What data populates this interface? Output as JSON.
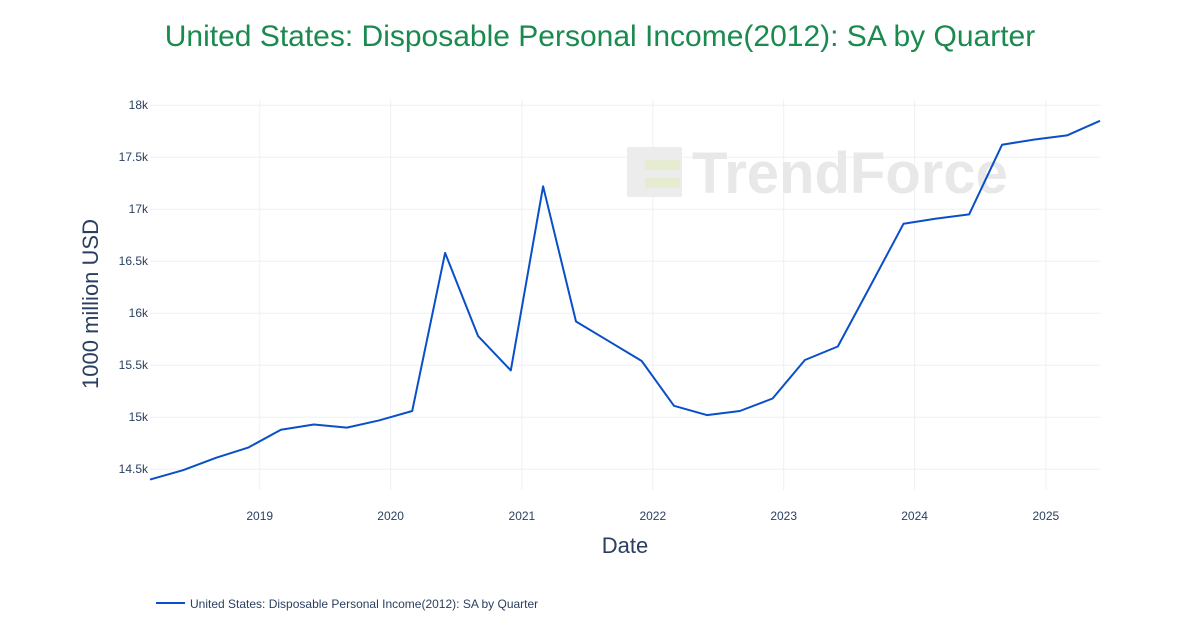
{
  "chart_data": {
    "type": "line",
    "title": "United States: Disposable Personal Income(2012): SA by Quarter",
    "xlabel": "Date",
    "ylabel": "1000 million USD",
    "x": [
      "2018-03-01",
      "2018-06-01",
      "2018-09-01",
      "2018-12-01",
      "2019-03-01",
      "2019-06-01",
      "2019-09-01",
      "2019-12-01",
      "2020-03-01",
      "2020-06-01",
      "2020-09-01",
      "2020-12-01",
      "2021-03-01",
      "2021-06-01",
      "2021-09-01",
      "2021-12-01",
      "2022-03-01",
      "2022-06-01",
      "2022-09-01",
      "2022-12-01",
      "2023-03-01",
      "2023-06-01",
      "2023-09-01",
      "2023-12-01",
      "2024-03-01",
      "2024-06-01",
      "2024-09-01",
      "2024-12-01",
      "2025-03-01",
      "2025-06-01"
    ],
    "series": [
      {
        "name": "United States: Disposable Personal Income(2012): SA by Quarter",
        "color": "#0a4fc9",
        "values": [
          14400,
          14490,
          14610,
          14710,
          14880,
          14930,
          14900,
          14970,
          15060,
          16580,
          15780,
          15450,
          17220,
          15920,
          15730,
          15540,
          15110,
          15020,
          15060,
          15180,
          15550,
          15680,
          16270,
          16860,
          16910,
          16950,
          17620,
          17670,
          17710,
          17850
        ]
      }
    ],
    "y_ticks": [
      14500,
      15000,
      15500,
      16000,
      16500,
      17000,
      17500,
      18000
    ],
    "y_tick_labels": [
      "14.5k",
      "15k",
      "15.5k",
      "16k",
      "16.5k",
      "17k",
      "17.5k",
      "18k"
    ],
    "x_ticks": [
      "2019-01-01",
      "2020-01-01",
      "2021-01-01",
      "2022-01-01",
      "2023-01-01",
      "2024-01-01",
      "2025-01-01"
    ],
    "x_tick_labels": [
      "2019",
      "2020",
      "2021",
      "2022",
      "2023",
      "2024",
      "2025"
    ],
    "xlim": [
      "2018-03-01",
      "2025-06-01"
    ],
    "ylim": [
      14300,
      18050
    ],
    "grid": true,
    "legend_position": "bottom-left",
    "watermark": "TrendForce"
  }
}
